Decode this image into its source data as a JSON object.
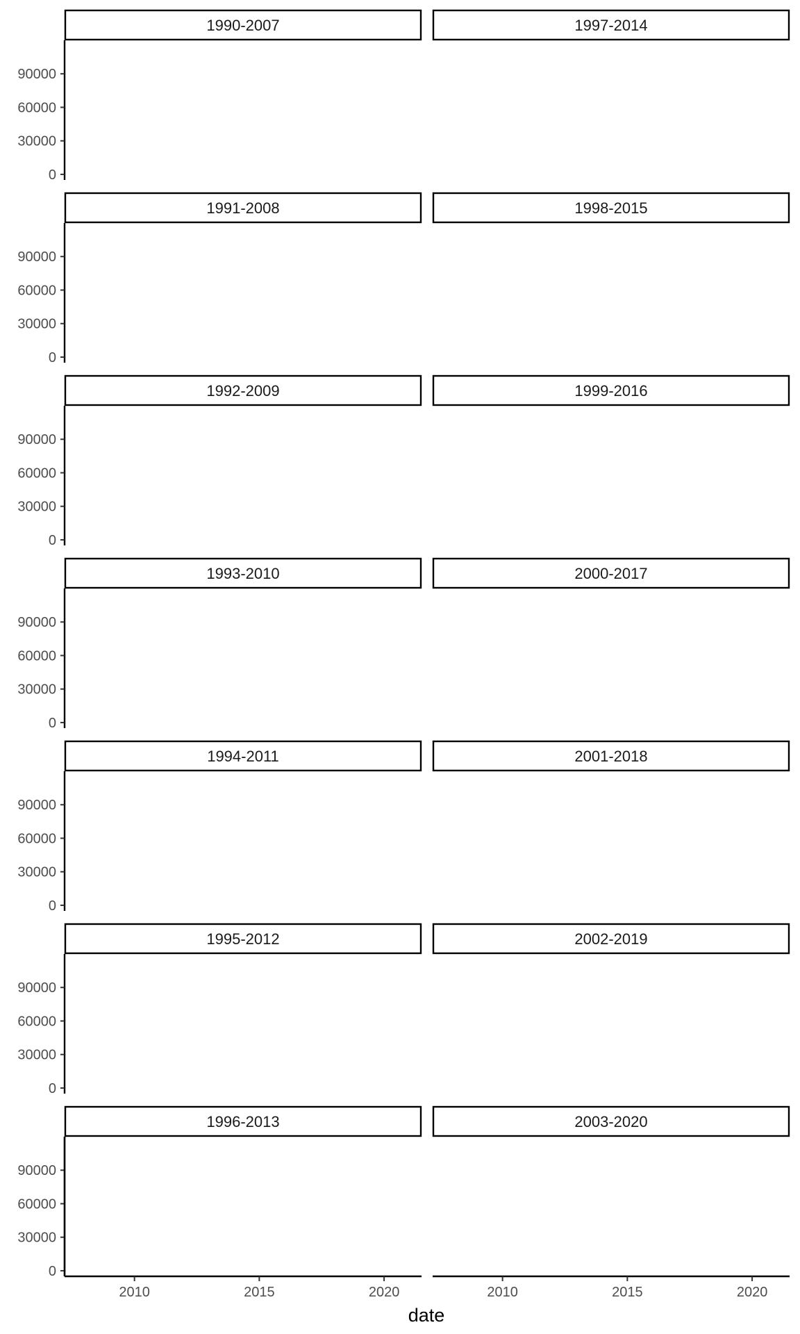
{
  "chart_data": {
    "type": "line",
    "facet_layout": "2 columns x 7 rows, shared axes",
    "xlabel": "date",
    "ylabel": "",
    "x_ticks": [
      "2010",
      "2015",
      "2020"
    ],
    "y_ticks": [
      "0",
      "30000",
      "60000",
      "90000"
    ],
    "xlim": [
      2007.2,
      2021.5
    ],
    "ylim": [
      -5000,
      120000
    ],
    "grid": false,
    "legend": "none",
    "facets": [
      {
        "label": "1990-2007",
        "values": []
      },
      {
        "label": "1991-2008",
        "values": []
      },
      {
        "label": "1992-2009",
        "values": []
      },
      {
        "label": "1993-2010",
        "values": []
      },
      {
        "label": "1994-2011",
        "values": []
      },
      {
        "label": "1995-2012",
        "values": []
      },
      {
        "label": "1996-2013",
        "values": []
      },
      {
        "label": "1997-2014",
        "values": []
      },
      {
        "label": "1998-2015",
        "values": []
      },
      {
        "label": "1999-2016",
        "values": []
      },
      {
        "label": "2000-2017",
        "values": []
      },
      {
        "label": "2001-2018",
        "values": []
      },
      {
        "label": "2002-2019",
        "values": []
      },
      {
        "label": "2003-2020",
        "values": []
      }
    ]
  }
}
